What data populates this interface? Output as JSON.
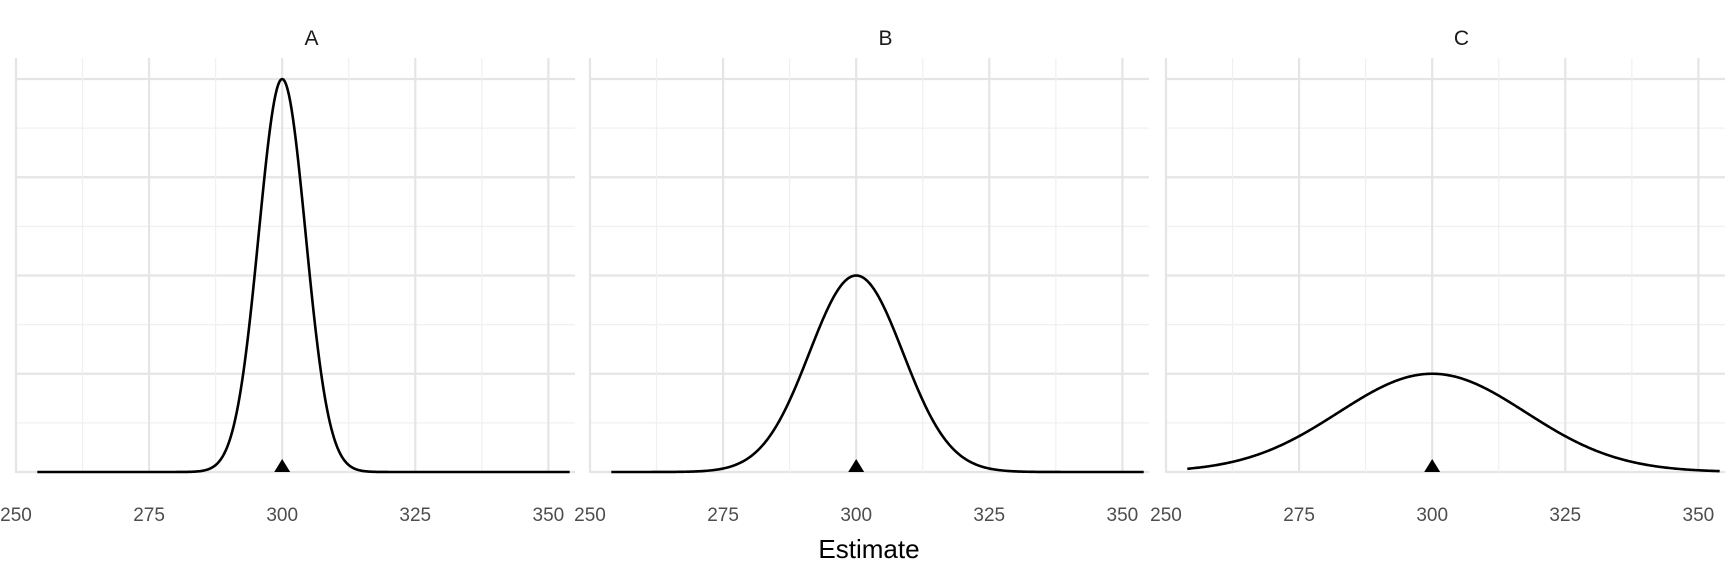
{
  "chart_data": [
    {
      "type": "line",
      "panel": "A",
      "title": "A",
      "xlabel": "Estimate",
      "ylabel": "",
      "xlim": [
        250,
        355
      ],
      "x_ticks": [
        "250",
        "275",
        "300",
        "325",
        "350"
      ],
      "y_ticks": [],
      "grid": true,
      "series": [
        {
          "distribution": "normal",
          "x_range": [
            254,
            354
          ],
          "mean": 300,
          "sd": 4.4,
          "peak": 1.0
        }
      ],
      "marker": {
        "shape": "triangle",
        "x": 300,
        "y": 0
      }
    },
    {
      "type": "line",
      "panel": "B",
      "title": "B",
      "xlabel": "Estimate",
      "ylabel": "",
      "xlim": [
        250,
        355
      ],
      "x_ticks": [
        "250",
        "275",
        "300",
        "325",
        "350"
      ],
      "y_ticks": [],
      "grid": true,
      "series": [
        {
          "distribution": "normal",
          "x_range": [
            254,
            354
          ],
          "mean": 300,
          "sd": 8.8,
          "peak": 0.5
        }
      ],
      "marker": {
        "shape": "triangle",
        "x": 300,
        "y": 0
      }
    },
    {
      "type": "line",
      "panel": "C",
      "title": "C",
      "xlabel": "Estimate",
      "ylabel": "",
      "xlim": [
        250,
        355
      ],
      "x_ticks": [
        "250",
        "275",
        "300",
        "325",
        "350"
      ],
      "y_ticks": [],
      "grid": true,
      "series": [
        {
          "distribution": "normal",
          "x_range": [
            254,
            354
          ],
          "mean": 300,
          "sd": 17.6,
          "peak": 0.25
        }
      ],
      "marker": {
        "shape": "triangle",
        "x": 300,
        "y": 0
      }
    }
  ],
  "shared": {
    "xlabel": "Estimate",
    "colors": {
      "curve": "#000000",
      "grid": "#e5e5e5",
      "background": "#ffffff"
    }
  }
}
